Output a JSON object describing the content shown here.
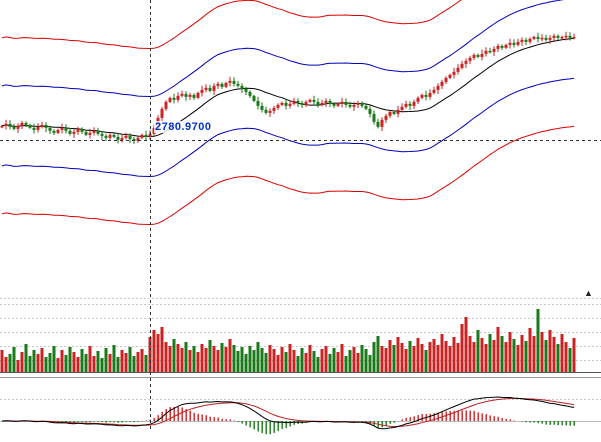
{
  "chart": {
    "colors": {
      "up": "#cc2222",
      "down": "#1a7a1a",
      "band_outer": "#dd0000",
      "band_inner": "#0000bb",
      "ma": "#000000",
      "macd_dif": "#000000",
      "macd_dea": "#bb2222",
      "grid": "#c8c8c8",
      "separator_dark": "#555555",
      "separator_light": "#999999",
      "zero_line": "#bbbbbb",
      "crosshair": "#333333",
      "crosshair_label_color": "#0033cc"
    },
    "icons": {
      "collapse_arrow": "▲"
    }
  },
  "chart_data": {
    "type": "candlestick",
    "panels": [
      "price-with-envelope-bands",
      "volume",
      "macd"
    ],
    "crosshair": {
      "x_index": 37,
      "price": "2780.9700",
      "price_value": 2780.97
    },
    "first_open": 2784.25,
    "params": {
      "ma_period": 15,
      "envelope_inner": 10,
      "envelope_outer": 22,
      "macd_periods": [
        12,
        26,
        9
      ]
    },
    "closes": [
      2784.5,
      2785.0,
      2784.25,
      2783.75,
      2784.5,
      2785.25,
      2784.75,
      2784.0,
      2783.5,
      2784.25,
      2784.75,
      2784.0,
      2783.25,
      2782.75,
      2783.5,
      2784.0,
      2783.25,
      2782.5,
      2783.0,
      2783.75,
      2783.0,
      2782.25,
      2782.75,
      2783.25,
      2782.5,
      2782.0,
      2781.5,
      2782.25,
      2781.75,
      2781.0,
      2781.5,
      2782.0,
      2781.25,
      2780.75,
      2781.5,
      2782.25,
      2781.75,
      2782.5,
      2784.0,
      2786.5,
      2788.75,
      2790.5,
      2791.5,
      2791.0,
      2792.0,
      2792.5,
      2791.75,
      2792.25,
      2791.5,
      2792.75,
      2793.5,
      2794.0,
      2793.25,
      2794.5,
      2795.0,
      2794.25,
      2795.25,
      2795.75,
      2795.0,
      2794.5,
      2793.75,
      2793.0,
      2792.0,
      2790.75,
      2789.5,
      2788.5,
      2787.75,
      2788.25,
      2789.0,
      2789.75,
      2790.25,
      2789.5,
      2790.0,
      2790.75,
      2790.25,
      2789.75,
      2790.5,
      2791.0,
      2790.5,
      2789.75,
      2790.25,
      2790.75,
      2790.0,
      2789.5,
      2790.0,
      2790.5,
      2789.75,
      2789.25,
      2789.75,
      2790.25,
      2789.5,
      2788.75,
      2787.5,
      2785.5,
      2784.25,
      2786.0,
      2787.0,
      2788.0,
      2787.5,
      2788.5,
      2789.25,
      2790.0,
      2789.5,
      2790.5,
      2791.5,
      2792.25,
      2791.75,
      2792.75,
      2793.5,
      2794.5,
      2795.5,
      2796.5,
      2797.25,
      2798.0,
      2799.0,
      2800.0,
      2800.75,
      2801.5,
      2802.25,
      2801.75,
      2802.5,
      2803.25,
      2803.0,
      2803.75,
      2804.5,
      2804.0,
      2804.75,
      2805.25,
      2804.75,
      2805.5,
      2806.0,
      2805.5,
      2806.25,
      2806.75,
      2806.25,
      2806.5,
      2806.0,
      2806.5,
      2807.0,
      2806.5,
      2806.75,
      2807.0,
      2806.5,
      2806.75
    ],
    "volumes": [
      22,
      15,
      18,
      25,
      12,
      20,
      28,
      16,
      22,
      18,
      24,
      15,
      19,
      26,
      14,
      22,
      17,
      25,
      20,
      15,
      23,
      18,
      26,
      16,
      21,
      14,
      24,
      18,
      27,
      15,
      22,
      19,
      25,
      16,
      20,
      23,
      17,
      35,
      42,
      38,
      45,
      30,
      26,
      33,
      28,
      24,
      30,
      22,
      26,
      20,
      28,
      24,
      32,
      26,
      22,
      29,
      25,
      33,
      27,
      21,
      25,
      18,
      26,
      22,
      30,
      24,
      19,
      27,
      23,
      17,
      25,
      20,
      28,
      22,
      16,
      24,
      19,
      27,
      21,
      15,
      23,
      26,
      18,
      24,
      20,
      28,
      16,
      22,
      25,
      19,
      27,
      23,
      17,
      30,
      36,
      26,
      24,
      32,
      27,
      35,
      29,
      23,
      31,
      26,
      34,
      28,
      22,
      30,
      33,
      27,
      38,
      31,
      26,
      35,
      29,
      48,
      55,
      36,
      30,
      42,
      34,
      28,
      38,
      32,
      45,
      36,
      30,
      40,
      33,
      27,
      37,
      31,
      44,
      36,
      63,
      40,
      32,
      42,
      35,
      28,
      38,
      30,
      24,
      34
    ]
  }
}
